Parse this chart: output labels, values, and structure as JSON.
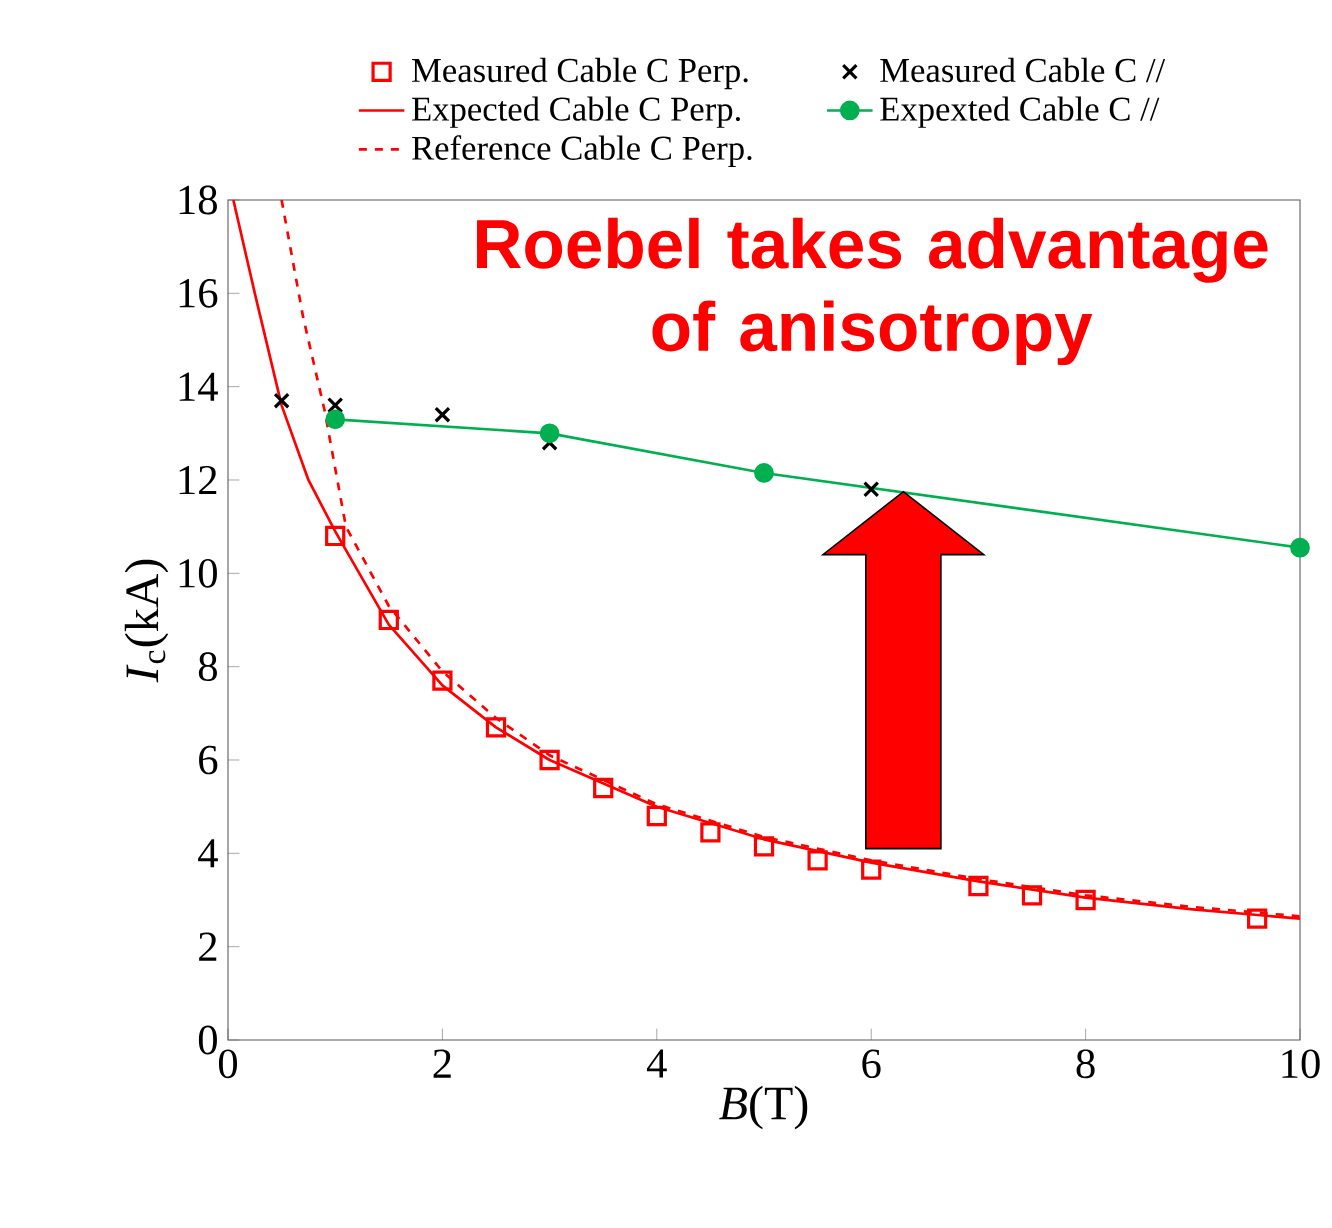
{
  "chart_data": {
    "type": "line",
    "xlabel": "*B*(T)",
    "ylabel": "*I*$_{c}$(kA)",
    "xlim": [
      0,
      10
    ],
    "ylim": [
      0,
      18
    ],
    "xticks": [
      0,
      2,
      4,
      6,
      8,
      10
    ],
    "yticks": [
      0,
      2,
      4,
      6,
      8,
      10,
      12,
      14,
      16,
      18
    ],
    "legend": "top",
    "annotations": [
      "Roebel takes advantage of anisotropy"
    ],
    "series": [
      {
        "name": "Measured Cable C Perp.",
        "type": "scatter",
        "marker": "square",
        "color": "#ff0000",
        "x": [
          1,
          1.5,
          2,
          2.5,
          3,
          3.5,
          4,
          4.5,
          5,
          5.5,
          6,
          7,
          7.5,
          8,
          9.6
        ],
        "values": [
          10.8,
          9.0,
          7.7,
          6.7,
          6.0,
          5.4,
          4.8,
          4.45,
          4.15,
          3.85,
          3.65,
          3.3,
          3.1,
          3.0,
          2.6
        ]
      },
      {
        "name": "Measured Cable C //",
        "type": "scatter",
        "marker": "cross",
        "color": "#000000",
        "x": [
          0.5,
          1,
          2,
          3,
          6
        ],
        "values": [
          13.7,
          13.6,
          13.4,
          12.8,
          11.8
        ]
      },
      {
        "name": "Expected Cable C Perp.",
        "type": "line",
        "marker": "none",
        "line_style": "solid",
        "color": "#ff0000",
        "x": [
          0.05,
          0.25,
          0.5,
          0.75,
          1,
          1.5,
          2,
          2.5,
          3,
          4,
          5,
          6,
          7,
          8,
          9,
          10
        ],
        "values": [
          18,
          16,
          13.6,
          12,
          10.9,
          8.9,
          7.6,
          6.7,
          6.0,
          5.0,
          4.3,
          3.8,
          3.4,
          3.05,
          2.8,
          2.6
        ]
      },
      {
        "name": "Expexted Cable C //",
        "type": "line",
        "marker": "circle",
        "line_style": "solid",
        "color": "#00b050",
        "x": [
          1,
          3,
          5,
          10
        ],
        "values": [
          13.3,
          13.0,
          12.15,
          10.55
        ]
      },
      {
        "name": "Reference Cable C Perp.",
        "type": "line",
        "marker": "none",
        "line_style": "dashed",
        "color": "#ff0000",
        "x": [
          0.5,
          0.7,
          0.9,
          1.1,
          1.5,
          2,
          2.5,
          3,
          4,
          5,
          6,
          7,
          8,
          9,
          10
        ],
        "values": [
          18,
          15.5,
          13.5,
          11,
          9.3,
          7.9,
          6.9,
          6.1,
          5.05,
          4.35,
          3.85,
          3.45,
          3.1,
          2.85,
          2.65
        ]
      }
    ]
  }
}
